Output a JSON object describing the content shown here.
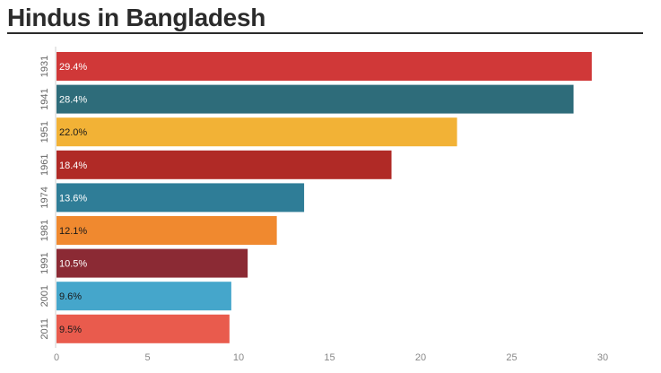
{
  "title": "Hindus in Bangladesh",
  "chart_data": {
    "type": "bar",
    "orientation": "horizontal",
    "title": "Hindus in Bangladesh",
    "categories": [
      "1931",
      "1941",
      "1951",
      "1961",
      "1974",
      "1981",
      "1991",
      "2001",
      "2011"
    ],
    "values": [
      29.4,
      28.4,
      22.0,
      18.4,
      13.6,
      12.1,
      10.5,
      9.6,
      9.5
    ],
    "value_labels": [
      "29.4%",
      "28.4%",
      "22.0%",
      "18.4%",
      "13.6%",
      "12.1%",
      "10.5%",
      "9.6%",
      "9.5%"
    ],
    "bar_colors": [
      "#d03838",
      "#2e6c7a",
      "#f2b236",
      "#b02a26",
      "#2f7d97",
      "#f0892f",
      "#8b2a34",
      "#45a6cb",
      "#e95b4d"
    ],
    "label_colors": [
      "#ffffff",
      "#ffffff",
      "#1a1a1a",
      "#ffffff",
      "#ffffff",
      "#1a1a1a",
      "#ffffff",
      "#1a1a1a",
      "#1a1a1a"
    ],
    "xlim": [
      0,
      30
    ],
    "xticks": [
      0,
      5,
      10,
      15,
      20,
      25,
      30
    ],
    "xlabel": "",
    "ylabel": "",
    "grid": false,
    "legend": "none"
  }
}
